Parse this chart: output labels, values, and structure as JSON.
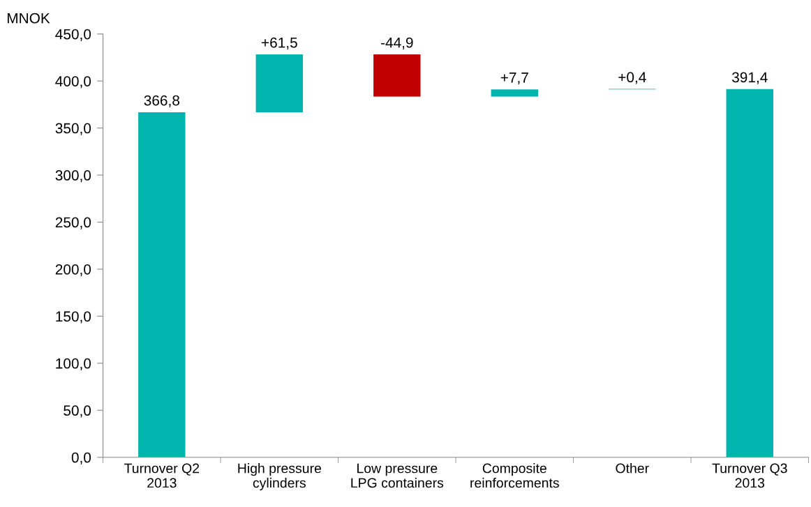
{
  "chart_data": {
    "type": "bar",
    "ylabel": "MNOK",
    "categories": [
      "Turnover Q2\n2013",
      "High pressure\ncylinders",
      "Low pressure\nLPG containers",
      "Composite\nreinforcements",
      "Other",
      "Turnover Q3\n2013"
    ],
    "values": [
      366.8,
      61.5,
      -44.9,
      7.7,
      0.4,
      391.4
    ],
    "base": [
      0,
      366.8,
      428.3,
      383.4,
      391.1,
      0
    ],
    "colors": [
      "#00b5ad",
      "#00b5ad",
      "#c00000",
      "#00b5ad",
      "#00b5ad",
      "#00b5ad"
    ],
    "value_labels": [
      "366,8",
      "+61,5",
      "-44,9",
      "+7,7",
      "+0,4",
      "391,4"
    ],
    "ylim": [
      0,
      450
    ],
    "yticks": [
      {
        "value": 0,
        "label": "0,0"
      },
      {
        "value": 50,
        "label": "50,0"
      },
      {
        "value": 100,
        "label": "100,0"
      },
      {
        "value": 150,
        "label": "150,0"
      },
      {
        "value": 200,
        "label": "200,0"
      },
      {
        "value": 250,
        "label": "250,0"
      },
      {
        "value": 300,
        "label": "300,0"
      },
      {
        "value": 350,
        "label": "350,0"
      },
      {
        "value": 400,
        "label": "400,0"
      },
      {
        "value": 450,
        "label": "450,0"
      }
    ],
    "grid": false,
    "legend": false
  }
}
